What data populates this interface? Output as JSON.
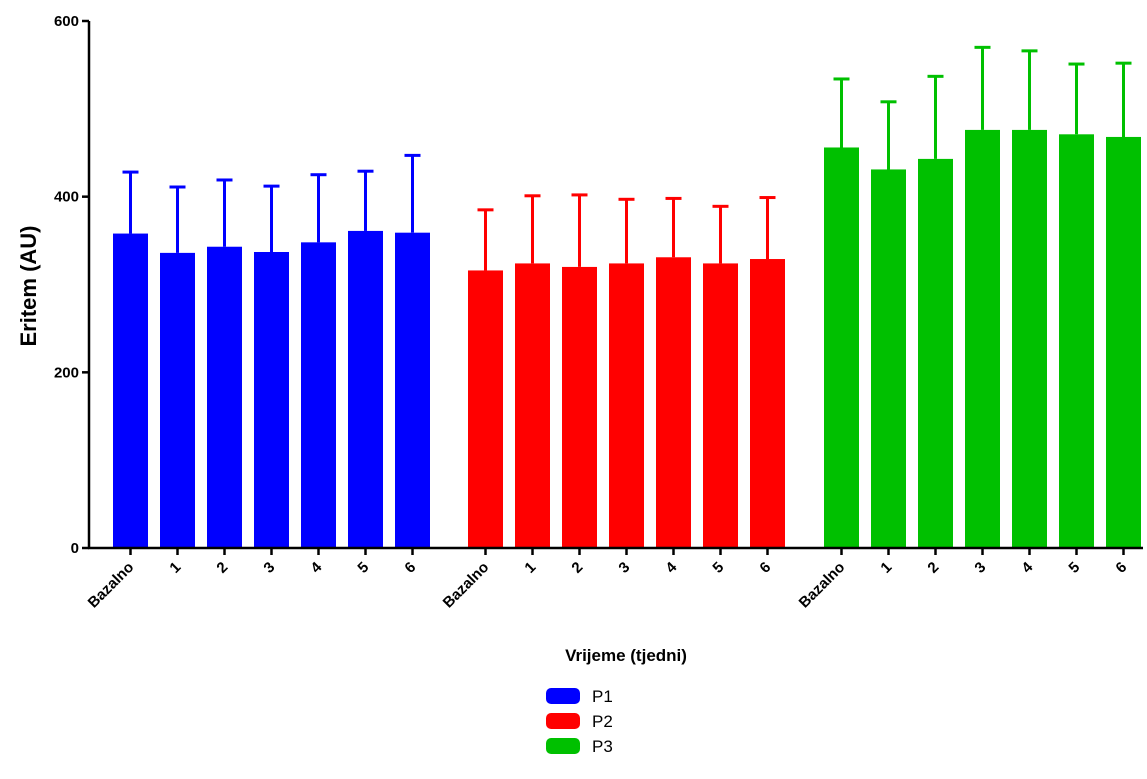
{
  "chart_data": {
    "type": "bar",
    "title": "",
    "xlabel": "Vrijeme (tjedni)",
    "ylabel": "Eritem (AU)",
    "ylim": [
      0,
      600
    ],
    "yticks": [
      "0",
      "200",
      "400",
      "600"
    ],
    "categories": [
      "Bazalno",
      "1",
      "2",
      "3",
      "4",
      "5",
      "6"
    ],
    "grid": false,
    "legend_position": "bottom-center",
    "series": [
      {
        "name": "P1",
        "color": "#0000ff",
        "values": [
          358,
          336,
          343,
          337,
          348,
          361,
          359
        ],
        "error": [
          70,
          75,
          76,
          75,
          77,
          68,
          88
        ]
      },
      {
        "name": "P2",
        "color": "#ff0000",
        "values": [
          316,
          324,
          320,
          324,
          331,
          324,
          329
        ],
        "error": [
          69,
          77,
          82,
          73,
          67,
          65,
          70
        ]
      },
      {
        "name": "P3",
        "color": "#00c000",
        "values": [
          456,
          431,
          443,
          476,
          476,
          471,
          468
        ],
        "error": [
          78,
          77,
          94,
          94,
          90,
          80,
          84
        ]
      }
    ]
  }
}
